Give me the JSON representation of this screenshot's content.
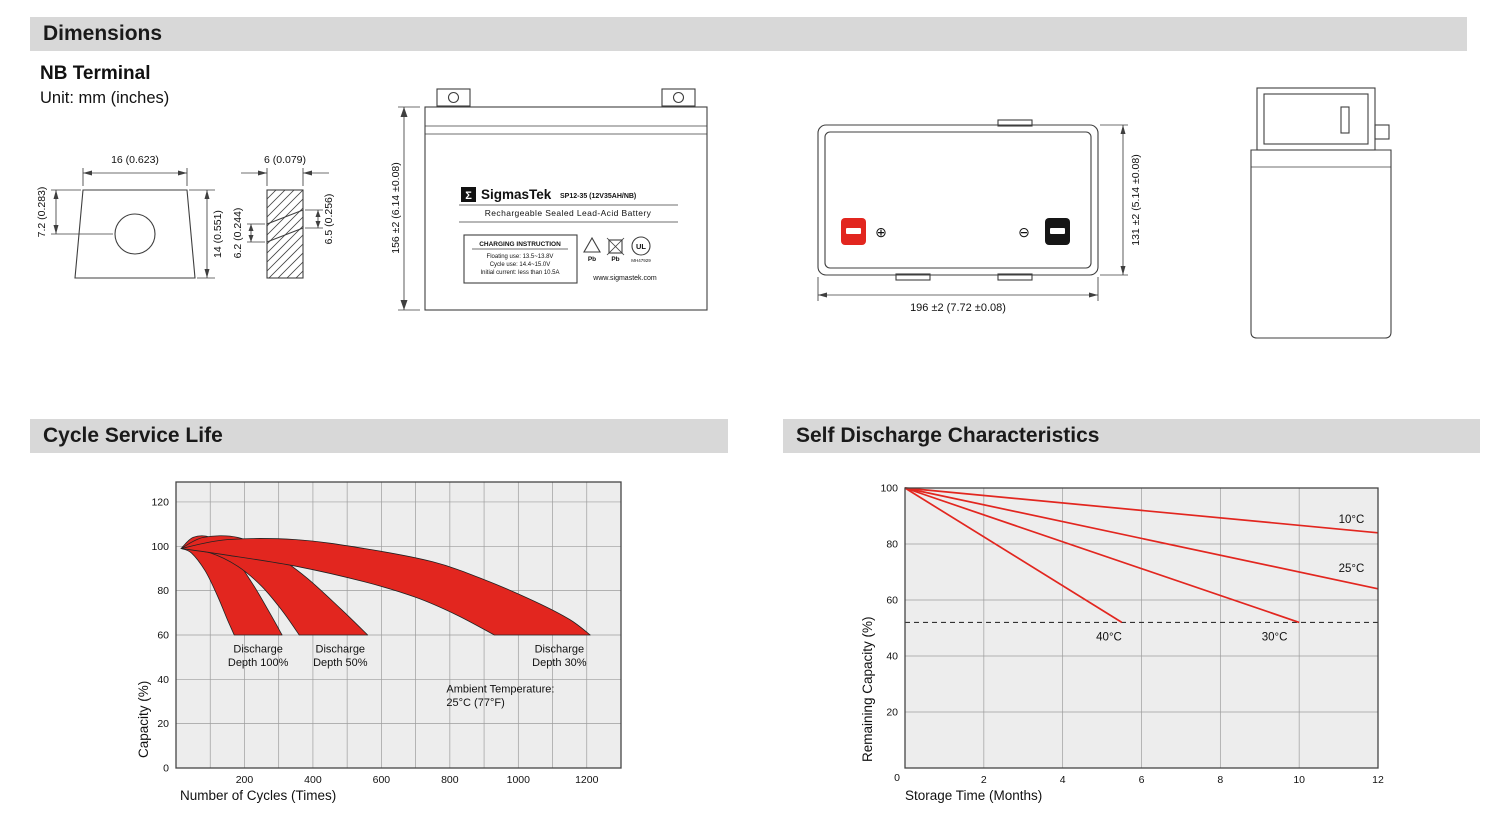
{
  "headers": {
    "dimensions": "Dimensions",
    "cycle_service_life": "Cycle Service Life",
    "self_discharge": "Self Discharge Characteristics"
  },
  "dimensions": {
    "terminal_type": "NB Terminal",
    "unit_note": "Unit: mm (inches)",
    "terminal_detail": {
      "width": "16 (0.623)",
      "height_front": "7.2 (0.283)",
      "height_total": "14 (0.551)",
      "slot_width": "6 (0.079)",
      "slot_left": "6.2 (0.244)",
      "slot_right": "6.5 (0.256)"
    },
    "front_view": {
      "height": "156 ±2 (6.14 ±0.08)",
      "logo_glyph": "Σ",
      "brand": "SigmasTek",
      "model": "SP12-35 (12V35AH/NB)",
      "battery_type": "Rechargeable Sealed Lead-Acid Battery",
      "charging_title": "CHARGING INSTRUCTION",
      "charging_floating": "Floating use: 13.5~13.8V",
      "charging_cycle": "Cycle use: 14.4~15.0V",
      "charging_initial": "Initial current: less than 10.5A",
      "pb_left": "Pb",
      "pb_right": "Pb",
      "ul_text": "UL",
      "ul_code": "MH47929",
      "website": "www.sigmastek.com"
    },
    "top_view": {
      "width": "196 ±2 (7.72 ±0.08)",
      "depth": "131 ±2 (5.14 ±0.08)",
      "positive_symbol": "⊕",
      "negative_symbol": "⊖"
    }
  },
  "chart_data": [
    {
      "type": "area",
      "title": "Cycle Service Life",
      "xlabel": "Number of Cycles (Times)",
      "ylabel": "Capacity (%)",
      "xlim": [
        0,
        1300
      ],
      "ylim": [
        0,
        129
      ],
      "x_ticks": [
        200,
        400,
        600,
        800,
        1000,
        1200
      ],
      "y_ticks": [
        0,
        20,
        40,
        60,
        80,
        100,
        120
      ],
      "grid": true,
      "band_color": "#e2261f",
      "bands": [
        {
          "name": "Discharge Depth 100%",
          "upper": [
            [
              15,
              99
            ],
            [
              50,
              104
            ],
            [
              100,
              104
            ],
            [
              160,
              97
            ],
            [
              220,
              84
            ],
            [
              270,
              71
            ],
            [
              310,
              60
            ]
          ],
          "lower": [
            [
              15,
              99
            ],
            [
              45,
              97
            ],
            [
              85,
              89
            ],
            [
              120,
              78
            ],
            [
              150,
              67
            ],
            [
              170,
              60
            ]
          ]
        },
        {
          "name": "Discharge Depth 50%",
          "upper": [
            [
              15,
              99
            ],
            [
              80,
              104
            ],
            [
              180,
              104
            ],
            [
              280,
              97
            ],
            [
              380,
              86
            ],
            [
              480,
              72
            ],
            [
              560,
              60
            ]
          ],
          "lower": [
            [
              15,
              99
            ],
            [
              100,
              97
            ],
            [
              180,
              91
            ],
            [
              250,
              82
            ],
            [
              310,
              71
            ],
            [
              360,
              60
            ]
          ]
        },
        {
          "name": "Discharge Depth 30%",
          "upper": [
            [
              15,
              99
            ],
            [
              150,
              103
            ],
            [
              350,
              103
            ],
            [
              550,
              99
            ],
            [
              750,
              93
            ],
            [
              900,
              85
            ],
            [
              1050,
              75
            ],
            [
              1150,
              67
            ],
            [
              1210,
              60
            ]
          ],
          "lower": [
            [
              15,
              99
            ],
            [
              150,
              96
            ],
            [
              350,
              91
            ],
            [
              550,
              84
            ],
            [
              700,
              77
            ],
            [
              820,
              69
            ],
            [
              930,
              60
            ]
          ]
        }
      ],
      "annotations": [
        {
          "lines": [
            "Discharge",
            "Depth 100%"
          ],
          "x": 240,
          "y": 52,
          "anchor": "middle"
        },
        {
          "lines": [
            "Discharge",
            "Depth 50%"
          ],
          "x": 480,
          "y": 52,
          "anchor": "middle"
        },
        {
          "lines": [
            "Discharge",
            "Depth 30%"
          ],
          "x": 1120,
          "y": 52,
          "anchor": "middle"
        },
        {
          "lines": [
            "Ambient Temperature:",
            "25°C (77°F)"
          ],
          "x": 790,
          "y": 34,
          "anchor": "start"
        }
      ]
    },
    {
      "type": "line",
      "title": "Self Discharge Characteristics",
      "xlabel": "Storage Time (Months)",
      "ylabel": "Remaining Capacity (%)",
      "xlim": [
        0,
        12
      ],
      "ylim": [
        0,
        100
      ],
      "x_ticks": [
        2,
        4,
        6,
        8,
        10,
        12
      ],
      "y_ticks": [
        20,
        40,
        60,
        80,
        100
      ],
      "origin_label": "0",
      "grid": true,
      "line_color": "#e2261f",
      "dashed_guide_y": 52,
      "series": [
        {
          "name": "10°C",
          "points": [
            [
              0,
              100
            ],
            [
              12,
              84
            ]
          ],
          "label_x": 11.0,
          "label_y": 87.5
        },
        {
          "name": "25°C",
          "points": [
            [
              0,
              100
            ],
            [
              12,
              64
            ]
          ],
          "label_x": 11.0,
          "label_y": 70
        },
        {
          "name": "30°C",
          "points": [
            [
              0,
              100
            ],
            [
              10,
              52
            ]
          ],
          "label_x": 9.05,
          "label_y": 45.5
        },
        {
          "name": "40°C",
          "points": [
            [
              0,
              100
            ],
            [
              5.5,
              52
            ]
          ],
          "label_x": 4.85,
          "label_y": 45.5
        }
      ]
    }
  ]
}
